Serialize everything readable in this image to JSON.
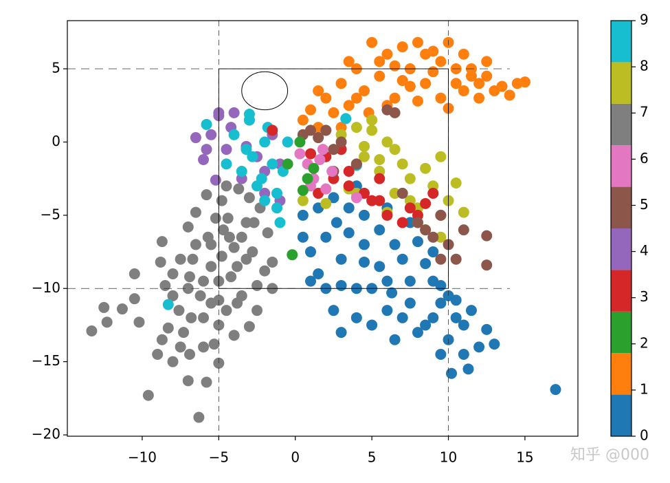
{
  "chart_data": {
    "type": "scatter",
    "xlim": [
      -14.89,
      18.46
    ],
    "ylim": [
      -20.09,
      8.29
    ],
    "xticks": [
      {
        "value": -10,
        "label": "−10"
      },
      {
        "value": -5,
        "label": "−5"
      },
      0,
      5,
      10,
      15
    ],
    "yticks": [
      5,
      0,
      {
        "value": -5,
        "label": "−5"
      },
      {
        "value": -10,
        "label": "−10"
      },
      {
        "value": -15,
        "label": "−15"
      },
      {
        "value": -20,
        "label": "−20"
      }
    ],
    "reference_lines": {
      "x": [
        -5,
        10
      ],
      "y": [
        5,
        -10
      ]
    },
    "ellipse": {
      "center": [
        -2,
        3.5
      ],
      "width": 3,
      "height": 2.6
    },
    "colorbar": {
      "lim": [
        0,
        9
      ],
      "ticks": [
        0,
        1,
        2,
        3,
        4,
        5,
        6,
        7,
        8,
        9
      ],
      "colors": [
        "#1f77b4",
        "#ff7f0e",
        "#2ca02c",
        "#d62728",
        "#9467bd",
        "#8c564b",
        "#e377c2",
        "#7f7f7f",
        "#bcbd22",
        "#17becf"
      ]
    },
    "watermark": "知乎 @000",
    "series": [
      {
        "color": "#7f7f7f",
        "x": [
          -13.3,
          -12.3,
          -12.5,
          -11.3,
          -10.5,
          -10.2,
          -10.5,
          -9.6,
          -9.0,
          -8.7,
          -8.7,
          -8.3,
          -8.0,
          -8.0,
          -7.6,
          -7.3,
          -7.0,
          -6.9,
          -6.7,
          -6.3,
          -6.2,
          -6.0,
          -5.8,
          -5.5,
          -5.3,
          -5.0,
          -5.0,
          -4.8,
          -4.5,
          -4.3,
          -4.0,
          -3.8,
          -3.5,
          -3.2,
          -3.0,
          -2.8,
          -2.5,
          -2.3,
          -2.0,
          -1.8,
          -1.5,
          -7.0,
          -6.5,
          -5.8,
          -5.2,
          -4.5,
          -3.7,
          -3.0,
          -2.5,
          -6.0,
          -5.5,
          -4.8,
          -4.2,
          -8.0,
          -7.5,
          -7.0,
          -6.8,
          -5.7,
          -5.0,
          -4.0,
          -3.2,
          -6.5,
          -5.0,
          -3.5,
          -2.7,
          -8.8,
          -8.5,
          -3.8,
          -4.4,
          -6.9,
          -4.7,
          -1.5,
          -7.5,
          -6.0,
          -5.5
        ],
        "y": [
          -12.9,
          -12.3,
          -11.3,
          -11.4,
          -10.7,
          -12.3,
          -9.0,
          -17.3,
          -14.5,
          -13.5,
          -6.8,
          -12.7,
          -9.0,
          -15.0,
          -11.5,
          -13.0,
          -16.3,
          -14.5,
          -8.0,
          -18.8,
          -10.5,
          -12.0,
          -16.4,
          -7.0,
          -13.8,
          -15.1,
          -9.5,
          -4.0,
          -11.5,
          -6.5,
          -13.2,
          -8.5,
          -10.5,
          -5.5,
          -12.6,
          -7.5,
          -9.8,
          -4.5,
          -8.8,
          -6.2,
          -10.0,
          -5.8,
          -4.8,
          -3.6,
          -5.2,
          -3.0,
          -3.2,
          -3.8,
          -11.5,
          -9.5,
          -11.0,
          -7.8,
          -9.2,
          -10.5,
          -8.0,
          -10.0,
          -12.0,
          -6.5,
          -12.5,
          -7.2,
          -8.0,
          -7.0,
          -10.8,
          -6.5,
          -5.5,
          -8.2,
          -9.8,
          -11.0,
          -5.2,
          -9.2,
          -6.0,
          -8.2,
          -14.0,
          -14.0,
          -8.5
        ]
      },
      {
        "color": "#1f77b4",
        "x": [
          0.5,
          1.0,
          1.5,
          2.0,
          2.5,
          3.0,
          3.5,
          4.0,
          4.5,
          5.0,
          5.5,
          6.0,
          6.5,
          7.0,
          7.5,
          8.0,
          8.5,
          9.0,
          9.5,
          10.0,
          10.5,
          11.0,
          11.5,
          12.0,
          12.5,
          13.0,
          1.5,
          2.5,
          3.5,
          4.5,
          5.5,
          6.5,
          7.5,
          8.5,
          9.5,
          10.5,
          2.0,
          3.0,
          4.0,
          5.0,
          6.0,
          7.0,
          8.0,
          9.0,
          10.0,
          11.0,
          3.0,
          4.5,
          6.0,
          7.5,
          9.0,
          2.7,
          4.0,
          6.3,
          9.5,
          11.3,
          17.0,
          10.2,
          1.0,
          0.5
        ],
        "y": [
          -5.0,
          -7.5,
          -9.0,
          -6.5,
          -11.5,
          -8.0,
          -4.5,
          -10.0,
          -7.0,
          -12.5,
          -6.0,
          -9.5,
          -13.5,
          -8.0,
          -11.0,
          -6.8,
          -12.5,
          -9.5,
          -14.5,
          -10.5,
          -12.0,
          -14.5,
          -11.5,
          -14.0,
          -12.8,
          -13.8,
          -4.5,
          -3.8,
          -6.2,
          -5.0,
          -8.5,
          -7.0,
          -9.5,
          -8.3,
          -11.0,
          -10.8,
          -10.0,
          -9.8,
          -12.0,
          -10.0,
          -11.5,
          -12.0,
          -13.0,
          -12.0,
          -13.5,
          -12.5,
          -13.0,
          -8.2,
          -4.5,
          -5.5,
          -7.5,
          -5.5,
          -3.0,
          -10.3,
          -9.8,
          -15.5,
          -16.9,
          -15.8,
          -9.5,
          -6.5
        ]
      },
      {
        "color": "#ff7f0e",
        "x": [
          0.5,
          1.0,
          1.5,
          2.0,
          2.5,
          3.0,
          3.5,
          4.0,
          4.5,
          5.0,
          5.5,
          6.0,
          6.5,
          7.0,
          7.5,
          8.0,
          8.5,
          9.0,
          9.5,
          10.0,
          10.5,
          11.0,
          11.5,
          12.0,
          12.5,
          13.0,
          13.5,
          14.0,
          14.5,
          15.0,
          2.0,
          3.0,
          4.0,
          5.0,
          6.0,
          7.0,
          8.0,
          9.0,
          10.0,
          11.0,
          12.0,
          1.5,
          3.5,
          5.5,
          7.5,
          9.5,
          11.5,
          4.8,
          6.5,
          8.5,
          10.5,
          12.5
        ],
        "y": [
          1.5,
          2.2,
          1.0,
          3.0,
          2.0,
          4.0,
          2.5,
          5.0,
          3.5,
          6.8,
          4.5,
          6.0,
          3.0,
          6.5,
          5.0,
          6.8,
          4.0,
          6.2,
          5.5,
          6.8,
          5.0,
          6.0,
          4.5,
          4.0,
          5.5,
          3.5,
          3.8,
          3.2,
          4.0,
          4.1,
          0.8,
          1.0,
          3.0,
          1.5,
          2.5,
          4.2,
          2.8,
          4.8,
          2.3,
          3.5,
          3.0,
          3.5,
          5.5,
          5.5,
          3.8,
          3.0,
          5.0,
          2.0,
          5.2,
          6.0,
          4.0,
          4.5
        ]
      },
      {
        "color": "#9467bd",
        "x": [
          -6.5,
          -6.0,
          -5.5,
          -5.0,
          -4.5,
          -4.0,
          -3.5,
          -3.0,
          -2.5,
          -2.0,
          -1.5,
          -5.2,
          -4.2,
          -3.2,
          -5.8,
          -1.0,
          -5.0,
          -2.0,
          -1.0
        ],
        "y": [
          0.3,
          -1.2,
          0.5,
          1.8,
          -0.5,
          2.0,
          -2.5,
          1.5,
          -1.0,
          -2.0,
          0.5,
          -2.6,
          1.0,
          -0.3,
          -0.5,
          -4.0,
          2.0,
          -3.5,
          -1.5
        ]
      },
      {
        "color": "#17becf",
        "x": [
          -5.8,
          -4.5,
          -4.0,
          -3.5,
          -3.0,
          -2.5,
          -2.0,
          -1.5,
          -1.0,
          -0.5,
          -3.2,
          -2.2,
          -1.2,
          -2.8,
          -1.8,
          -0.8,
          -1.2,
          -8.3,
          4.0,
          3.3,
          -3.0,
          -2.0
        ],
        "y": [
          1.2,
          -1.5,
          0.5,
          -2.0,
          1.5,
          -3.0,
          0.0,
          -1.5,
          -5.5,
          0.0,
          -0.5,
          -2.5,
          -3.5,
          -1.0,
          1.0,
          -2.0,
          -4.5,
          -11.1,
          -1.6,
          1.6,
          1.9,
          -4.0
        ]
      },
      {
        "color": "#bcbd22",
        "x": [
          3.0,
          3.5,
          4.0,
          4.5,
          5.0,
          5.5,
          6.0,
          6.5,
          7.0,
          7.5,
          8.0,
          8.5,
          9.0,
          9.5,
          10.0,
          10.5,
          11.0,
          4.5,
          5.5,
          6.5,
          7.5,
          8.5,
          9.5,
          3.5,
          5.0,
          6.0,
          0.5,
          2.0,
          4.0,
          8.0
        ],
        "y": [
          0.5,
          -3.0,
          1.0,
          -1.0,
          0.8,
          -2.0,
          0.0,
          -3.5,
          -1.5,
          -2.5,
          -4.5,
          -1.8,
          -3.0,
          -1.0,
          -4.0,
          -2.8,
          -4.8,
          -0.3,
          -1.2,
          -0.5,
          -4.0,
          -6.0,
          -6.5,
          -3.2,
          1.5,
          -4.8,
          -4.0,
          -4.2,
          -3.5,
          -5.5
        ]
      },
      {
        "color": "#d62728",
        "x": [
          -1.5,
          1.0,
          1.5,
          2.0,
          2.5,
          3.0,
          3.5,
          4.0,
          4.5,
          5.0,
          5.5,
          6.0,
          7.0,
          8.0,
          8.5,
          9.0,
          9.5,
          3.5,
          5.5,
          7.5
        ],
        "y": [
          0.8,
          -0.8,
          -3.5,
          -1.0,
          -2.5,
          -0.5,
          -3.0,
          -1.5,
          -3.5,
          -4.0,
          -2.5,
          -5.0,
          -5.5,
          -5.0,
          -4.2,
          -3.5,
          -5.0,
          -2.0,
          -4.0,
          -4.5
        ]
      },
      {
        "color": "#8c564b",
        "x": [
          0.5,
          1.0,
          1.5,
          2.0,
          2.5,
          6.0,
          6.5,
          7.0,
          8.0,
          8.5,
          9.0,
          9.5,
          10.0,
          10.5,
          11.0,
          12.5,
          12.5,
          9.5,
          3.0,
          4.0,
          2.5
        ],
        "y": [
          0.5,
          0.8,
          0.3,
          0.8,
          -0.5,
          2.2,
          2.0,
          -3.5,
          -5.5,
          -6.0,
          -6.5,
          -8.0,
          -7.0,
          -8.0,
          -6.0,
          -6.4,
          -8.4,
          -5.0,
          0.0,
          -1.5,
          -2.0
        ]
      },
      {
        "color": "#e377c2",
        "x": [
          0.3,
          0.8,
          1.2,
          1.6,
          2.0,
          2.4,
          1.0,
          1.8,
          4.0
        ],
        "y": [
          -0.8,
          -1.5,
          -2.5,
          -1.2,
          -3.2,
          -2.0,
          -3.0,
          -0.5,
          -3.8
        ]
      },
      {
        "color": "#2ca02c",
        "x": [
          -0.5,
          0.3,
          0.8,
          1.2,
          -0.2,
          0.5
        ],
        "y": [
          -1.5,
          0.0,
          -2.5,
          -1.8,
          -7.7,
          -3.3
        ]
      }
    ]
  }
}
